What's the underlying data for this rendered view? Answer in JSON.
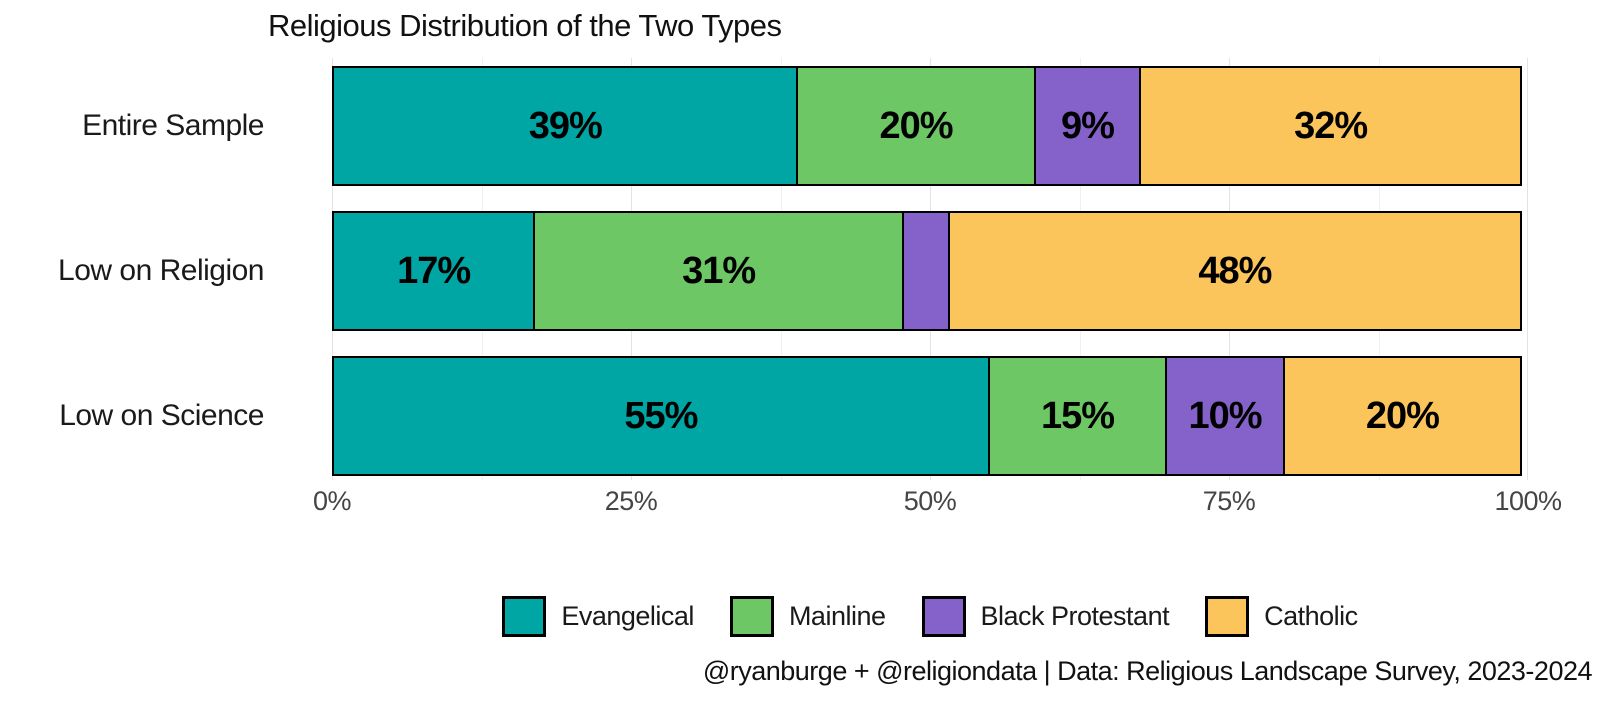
{
  "title": "Religious Distribution of the Two Types",
  "caption": "@ryanburge + @religiondata | Data: Religious Landscape Survey, 2023-2024",
  "colors": {
    "evangelical": "#00a6a4",
    "mainline": "#6cc764",
    "black_protestant": "#8562c9",
    "catholic": "#fbc55c",
    "bar_border": "#000000"
  },
  "chart_data": {
    "type": "bar",
    "orientation": "horizontal",
    "stacked": true,
    "title": "Religious Distribution of the Two Types",
    "xlabel": "",
    "ylabel": "",
    "xlim": [
      0,
      100
    ],
    "grid": "vertical, major every 25%, minor every 12.5%",
    "legend_position": "bottom-center",
    "categories": [
      "Entire Sample",
      "Low on Religion",
      "Low on Science"
    ],
    "series": [
      {
        "name": "Evangelical",
        "color": "#00a6a4",
        "values": [
          39,
          17,
          55
        ],
        "labels": [
          "39%",
          "17%",
          "55%"
        ]
      },
      {
        "name": "Mainline",
        "color": "#6cc764",
        "values": [
          20,
          31,
          15
        ],
        "labels": [
          "20%",
          "31%",
          "15%"
        ]
      },
      {
        "name": "Black Protestant",
        "color": "#8562c9",
        "values": [
          9,
          4,
          10
        ],
        "labels": [
          "9%",
          "",
          "10%"
        ]
      },
      {
        "name": "Catholic",
        "color": "#fbc55c",
        "values": [
          32,
          48,
          20
        ],
        "labels": [
          "32%",
          "48%",
          "20%"
        ]
      }
    ],
    "x_ticks": [
      {
        "value": 0,
        "label": "0%"
      },
      {
        "value": 25,
        "label": "25%"
      },
      {
        "value": 50,
        "label": "50%"
      },
      {
        "value": 75,
        "label": "75%"
      },
      {
        "value": 100,
        "label": "100%"
      }
    ],
    "legend": [
      "Evangelical",
      "Mainline",
      "Black Protestant",
      "Catholic"
    ]
  },
  "layout": {
    "row_tops": [
      8,
      153,
      298
    ],
    "minor_grid_pcts": [
      12.5,
      37.5,
      62.5,
      87.5
    ],
    "major_grid_pcts": [
      0,
      25,
      50,
      75,
      100
    ]
  }
}
